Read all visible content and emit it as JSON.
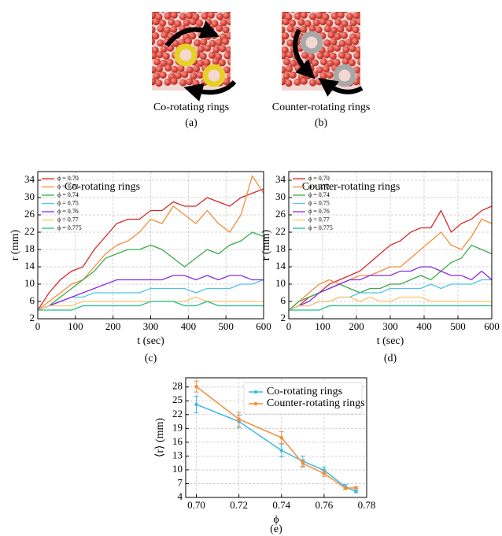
{
  "images": [
    {
      "caption": "Co-rotating rings",
      "label": "(a)"
    },
    {
      "caption": "Counter-rotating rings",
      "label": "(b)"
    }
  ],
  "chart_data": [
    {
      "type": "line",
      "label": "(c)",
      "annotation": "Co-rotating rings",
      "xlabel": "t (sec)",
      "ylabel": "r (mm)",
      "xlim": [
        0,
        600
      ],
      "xticks": [
        0,
        100,
        200,
        300,
        400,
        500,
        600
      ],
      "ylim": [
        2,
        36
      ],
      "yticks": [
        2,
        6,
        10,
        14,
        18,
        22,
        26,
        30,
        34
      ],
      "grid": true,
      "legend": "upper-left",
      "x": [
        0,
        30,
        60,
        90,
        120,
        150,
        180,
        210,
        240,
        270,
        300,
        330,
        360,
        390,
        420,
        450,
        480,
        510,
        540,
        570,
        600
      ],
      "series": [
        {
          "name": "ϕ = 0.70",
          "color": "#d62728",
          "values": [
            4,
            8,
            11,
            13,
            14,
            18,
            21,
            24,
            25,
            25,
            27,
            27,
            29,
            28,
            28,
            30,
            29,
            28,
            30,
            31,
            32
          ]
        },
        {
          "name": "ϕ = 0.72",
          "color": "#f28e3c",
          "values": [
            4,
            6,
            8,
            10,
            11,
            14,
            17,
            19,
            20,
            22,
            25,
            24,
            28,
            26,
            24,
            27,
            24,
            22,
            26,
            35,
            31
          ]
        },
        {
          "name": "ϕ = 0.74",
          "color": "#3aaa4a",
          "values": [
            4,
            5,
            7,
            9,
            11,
            13,
            16,
            17,
            18,
            18,
            19,
            18,
            16,
            14,
            16,
            18,
            17,
            19,
            20,
            22,
            21
          ]
        },
        {
          "name": "ϕ = 0.75",
          "color": "#4fc3e8",
          "values": [
            4,
            5,
            6,
            7,
            7,
            8,
            8,
            8,
            8,
            8,
            9,
            9,
            9,
            9,
            8,
            9,
            9,
            9,
            10,
            10,
            11
          ]
        },
        {
          "name": "ϕ = 0.76",
          "color": "#8a2be2",
          "values": [
            4,
            5,
            6,
            7,
            8,
            9,
            10,
            11,
            11,
            11,
            11,
            11,
            12,
            12,
            11,
            12,
            11,
            12,
            12,
            11,
            11
          ]
        },
        {
          "name": "ϕ = 0.77",
          "color": "#ffc46b",
          "values": [
            4,
            5,
            5,
            5,
            6,
            6,
            6,
            6,
            6,
            6,
            6,
            6,
            6,
            6,
            7,
            6,
            6,
            6,
            6,
            6,
            6
          ]
        },
        {
          "name": "ϕ = 0.775",
          "color": "#1fc08a",
          "values": [
            4,
            4,
            4,
            4,
            5,
            5,
            5,
            5,
            5,
            5,
            6,
            6,
            6,
            5,
            5,
            6,
            5,
            5,
            5,
            5,
            5
          ]
        }
      ]
    },
    {
      "type": "line",
      "label": "(d)",
      "annotation": "Counter-rotating rings",
      "xlabel": "t (sec)",
      "ylabel": "r (mm)",
      "xlim": [
        0,
        600
      ],
      "xticks": [
        0,
        100,
        200,
        300,
        400,
        500,
        600
      ],
      "ylim": [
        2,
        36
      ],
      "yticks": [
        2,
        6,
        10,
        14,
        18,
        22,
        26,
        30,
        34
      ],
      "grid": true,
      "legend": "upper-left",
      "x": [
        0,
        30,
        60,
        90,
        120,
        150,
        180,
        210,
        240,
        270,
        300,
        330,
        360,
        390,
        420,
        450,
        480,
        510,
        540,
        570,
        600
      ],
      "series": [
        {
          "name": "ϕ = 0.70",
          "color": "#d62728",
          "values": [
            4,
            5,
            7,
            8,
            10,
            11,
            12,
            13,
            15,
            17,
            19,
            20,
            22,
            23,
            23,
            27,
            22,
            24,
            25,
            27,
            28
          ]
        },
        {
          "name": "ϕ = 0.72",
          "color": "#f28e3c",
          "values": [
            4,
            6,
            8,
            10,
            11,
            10,
            11,
            12,
            12,
            13,
            14,
            14,
            16,
            18,
            20,
            22,
            19,
            18,
            21,
            25,
            24
          ]
        },
        {
          "name": "ϕ = 0.74",
          "color": "#3aaa4a",
          "values": [
            4,
            6,
            7,
            8,
            9,
            10,
            9,
            8,
            9,
            9,
            10,
            10,
            11,
            12,
            11,
            13,
            15,
            16,
            19,
            18,
            17
          ]
        },
        {
          "name": "ϕ = 0.75",
          "color": "#4fc3e8",
          "values": [
            4,
            5,
            5,
            6,
            6,
            7,
            7,
            8,
            8,
            8,
            9,
            9,
            9,
            9,
            10,
            9,
            10,
            10,
            10,
            11,
            11
          ]
        },
        {
          "name": "ϕ = 0.76",
          "color": "#8a2be2",
          "values": [
            4,
            5,
            6,
            8,
            9,
            10,
            11,
            11,
            12,
            12,
            12,
            13,
            13,
            14,
            14,
            13,
            12,
            12,
            11,
            13,
            11
          ]
        },
        {
          "name": "ϕ = 0.77",
          "color": "#ffc46b",
          "values": [
            4,
            5,
            5,
            6,
            6,
            7,
            7,
            6,
            7,
            6,
            6,
            7,
            7,
            7,
            6,
            6,
            6,
            6,
            6,
            6,
            6
          ]
        },
        {
          "name": "ϕ = 0.775",
          "color": "#1fc08a",
          "values": [
            4,
            4,
            4,
            4,
            5,
            5,
            5,
            5,
            5,
            5,
            5,
            5,
            5,
            5,
            5,
            5,
            5,
            5,
            5,
            5,
            5
          ]
        }
      ]
    },
    {
      "type": "errorbar",
      "label": "(e)",
      "xlabel": "ϕ",
      "ylabel": "⟨r⟩ (mm)",
      "xlim": [
        0.695,
        0.78
      ],
      "xticks": [
        {
          "value": 0.7,
          "label": "0.70"
        },
        0.72,
        0.74,
        0.76,
        0.78
      ],
      "ylim": [
        4,
        30
      ],
      "yticks": [
        4,
        7,
        10,
        13,
        16,
        19,
        22,
        25,
        28
      ],
      "grid": true,
      "legend": "upper-right",
      "x": [
        0.7,
        0.72,
        0.74,
        0.75,
        0.76,
        0.77,
        0.775
      ],
      "series": [
        {
          "name": "Co-rotating rings",
          "color": "#3cb8e6",
          "values": [
            24.2,
            20.5,
            14.2,
            11.9,
            9.9,
            6.3,
            5.3
          ],
          "errors": [
            1.8,
            1.4,
            1.4,
            1.1,
            0.7,
            0.5,
            0.3
          ]
        },
        {
          "name": "Counter-rotating rings",
          "color": "#f28e3c",
          "values": [
            28.1,
            21.0,
            17.0,
            11.4,
            9.2,
            6.0,
            6.1
          ],
          "errors": [
            1.2,
            1.5,
            1.3,
            0.8,
            0.6,
            0.3,
            0.2
          ]
        }
      ]
    }
  ]
}
